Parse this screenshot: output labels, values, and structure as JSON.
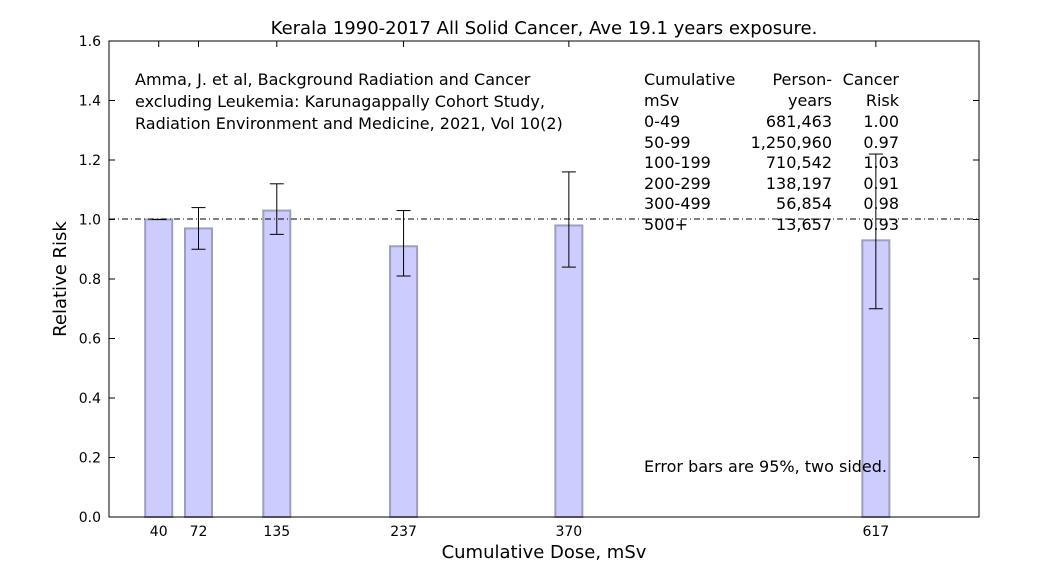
{
  "chart_data": {
    "type": "bar",
    "title": "Kerala 1990-2017 All Solid Cancer, Ave 19.1 years exposure.",
    "xlabel": "Cumulative Dose, mSv",
    "ylabel": "Relative Risk",
    "ylim": [
      0,
      1.6
    ],
    "yticks": [
      "0.0",
      "0.2",
      "0.4",
      "0.6",
      "0.8",
      "1.0",
      "1.2",
      "1.4",
      "1.6"
    ],
    "reference_line": 1.0,
    "series": [
      {
        "name": "Relative Risk",
        "color": "#ccccff",
        "points": [
          {
            "label": "40",
            "value": 1.0,
            "err_low": 1.0,
            "err_high": 1.0
          },
          {
            "label": "72",
            "value": 0.97,
            "err_low": 0.9,
            "err_high": 1.04
          },
          {
            "label": "135",
            "value": 1.03,
            "err_low": 0.95,
            "err_high": 1.12
          },
          {
            "label": "237",
            "value": 0.91,
            "err_low": 0.81,
            "err_high": 1.03
          },
          {
            "label": "370",
            "value": 0.98,
            "err_low": 0.84,
            "err_high": 1.16
          },
          {
            "label": "617",
            "value": 0.93,
            "err_low": 0.7,
            "err_high": 1.22
          }
        ]
      }
    ],
    "citation": [
      "Amma, J. et al, Background Radiation and Cancer",
      "excluding Leukemia: Karunagappally Cohort Study,",
      "Radiation Environment and Medicine, 2021, Vol 10(2)"
    ],
    "table": {
      "headers": [
        [
          "Cumulative",
          "Person-",
          "Cancer"
        ],
        [
          "mSv",
          "years",
          "Risk"
        ]
      ],
      "rows": [
        [
          "0-49",
          "681,463",
          "1.00"
        ],
        [
          "50-99",
          "1,250,960",
          "0.97"
        ],
        [
          "100-199",
          "710,542",
          "1.03"
        ],
        [
          "200-299",
          "138,197",
          "0.91"
        ],
        [
          "300-499",
          "56,854",
          "0.98"
        ],
        [
          "500+",
          "13,657",
          "0.93"
        ]
      ]
    },
    "note": "Error bars are 95%, two sided."
  }
}
